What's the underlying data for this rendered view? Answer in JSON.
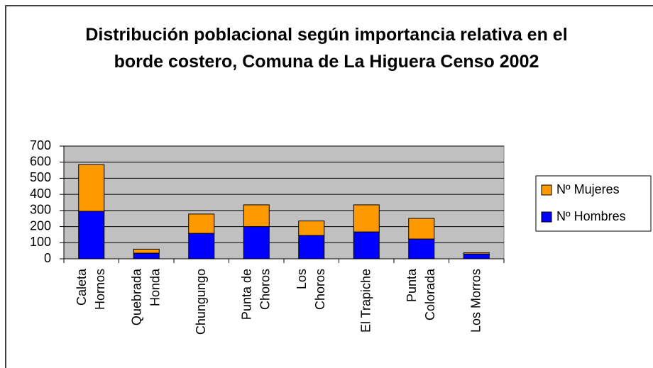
{
  "chart_data": {
    "type": "stacked_bar",
    "title": "Distribución poblacional según importancia relativa en el borde costero, Comuna de La Higuera Censo 2002",
    "categories": [
      "Caleta\nHornos",
      "Quebrada\nHonda",
      "Chungungo",
      "Punta de\nChoros",
      "Los\nChoros",
      "El Trapiche",
      "Punta\nColorada",
      "Los Morros"
    ],
    "series": [
      {
        "name": "Nº Hombres",
        "color": "#0000ff",
        "values": [
          295,
          35,
          158,
          200,
          145,
          167,
          123,
          30
        ]
      },
      {
        "name": "Nº Mujeres",
        "color": "#ff9900",
        "values": [
          290,
          25,
          120,
          135,
          90,
          168,
          128,
          8
        ]
      }
    ],
    "ylim": [
      0,
      700
    ],
    "yticks": [
      0,
      100,
      200,
      300,
      400,
      500,
      600,
      700
    ],
    "grid": true,
    "legend": "right"
  }
}
